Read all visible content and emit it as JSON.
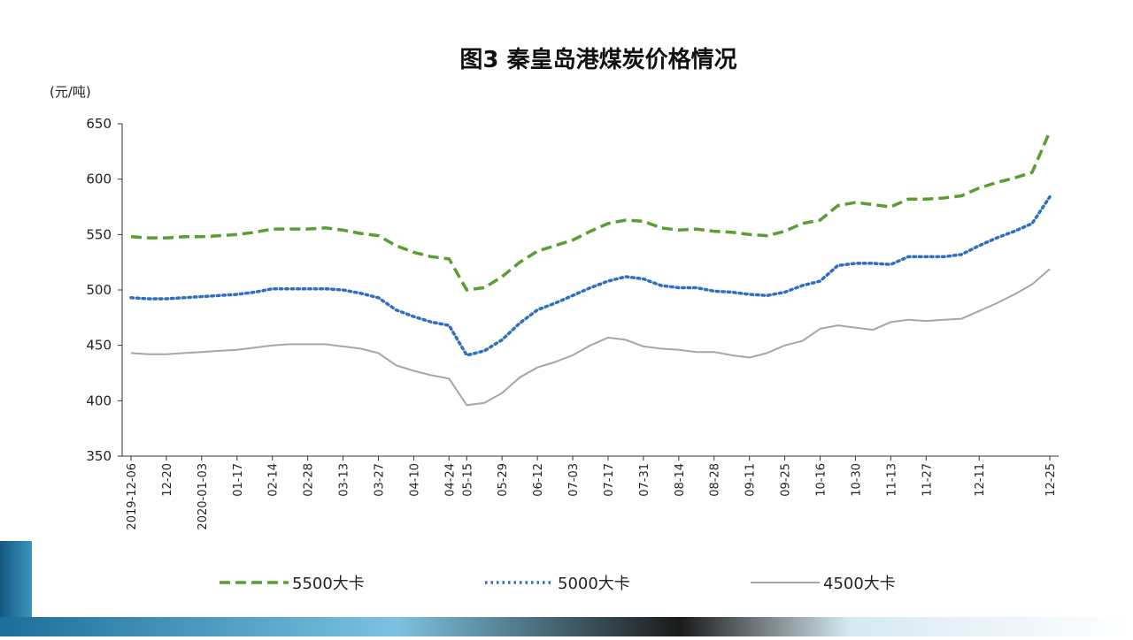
{
  "chart_data": {
    "type": "line",
    "title": "图3 秦皇岛港煤炭价格情况",
    "y_axis_label": "(元/吨)",
    "categories": [
      "2019-12-06",
      null,
      "12-20",
      null,
      "2020-01-03",
      null,
      "01-17",
      null,
      "02-14",
      null,
      "02-28",
      null,
      "03-13",
      null,
      "03-27",
      null,
      "04-10",
      null,
      "04-24",
      "05-15",
      null,
      "05-29",
      null,
      "06-12",
      null,
      "07-03",
      null,
      "07-17",
      null,
      "07-31",
      null,
      "08-14",
      null,
      "08-28",
      null,
      "09-11",
      null,
      "09-25",
      null,
      "10-16",
      null,
      "10-30",
      null,
      "11-13",
      null,
      "11-27",
      null,
      null,
      "12-11",
      null,
      null,
      null,
      "12-25"
    ],
    "series": [
      {
        "name": "5500大卡",
        "color": "#5a9e32",
        "style": "dashed",
        "values": [
          548,
          547,
          547,
          548,
          548,
          549,
          550,
          552,
          555,
          555,
          555,
          556,
          554,
          551,
          549,
          540,
          534,
          530,
          528,
          500,
          502,
          512,
          525,
          535,
          540,
          545,
          553,
          560,
          563,
          562,
          556,
          554,
          555,
          553,
          552,
          550,
          549,
          553,
          560,
          563,
          576,
          579,
          577,
          575,
          582,
          582,
          583,
          585,
          592,
          597,
          601,
          606,
          643
        ]
      },
      {
        "name": "5000大卡",
        "color": "#2f6fc0",
        "style": "dotted",
        "values": [
          493,
          492,
          492,
          493,
          494,
          495,
          496,
          498,
          501,
          501,
          501,
          501,
          500,
          497,
          493,
          482,
          476,
          471,
          468,
          441,
          445,
          455,
          470,
          482,
          488,
          495,
          502,
          508,
          512,
          510,
          504,
          502,
          502,
          499,
          498,
          496,
          495,
          498,
          504,
          508,
          522,
          524,
          524,
          523,
          530,
          530,
          530,
          532,
          540,
          547,
          553,
          560,
          584
        ]
      },
      {
        "name": "4500大卡",
        "color": "#a6a6a6",
        "style": "solid",
        "values": [
          443,
          442,
          442,
          443,
          444,
          445,
          446,
          448,
          450,
          451,
          451,
          451,
          449,
          447,
          443,
          432,
          427,
          423,
          420,
          396,
          398,
          407,
          421,
          430,
          435,
          441,
          450,
          457,
          455,
          449,
          447,
          446,
          444,
          444,
          441,
          439,
          443,
          450,
          454,
          465,
          468,
          466,
          464,
          471,
          473,
          472,
          473,
          474,
          481,
          488,
          496,
          505,
          519
        ]
      }
    ],
    "ylim": [
      350,
      650
    ],
    "yticks": [
      350,
      400,
      450,
      500,
      550,
      600,
      650
    ],
    "legend": "bottom"
  }
}
